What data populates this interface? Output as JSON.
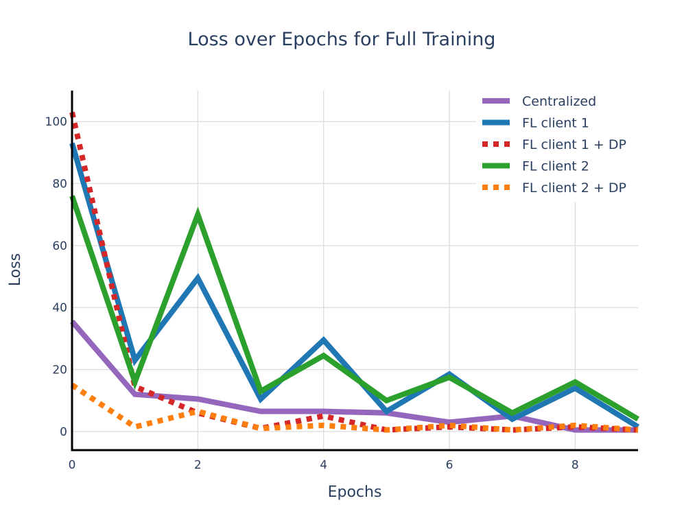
{
  "chart_data": {
    "type": "line",
    "title": "Loss over Epochs for Full Training",
    "xlabel": "Epochs",
    "ylabel": "Loss",
    "x": [
      0,
      1,
      2,
      3,
      4,
      5,
      6,
      7,
      8,
      9
    ],
    "xlim": [
      0,
      9
    ],
    "ylim": [
      -6,
      110
    ],
    "x_ticks": [
      0,
      2,
      4,
      6,
      8
    ],
    "y_ticks": [
      0,
      20,
      40,
      60,
      80,
      100
    ],
    "grid": true,
    "legend_position": "top-right",
    "series": [
      {
        "name": "Centralized",
        "color": "#9467bd",
        "dash": "solid",
        "values": [
          35.5,
          12,
          10.5,
          6.5,
          6.5,
          6,
          3,
          5,
          0.5,
          0.5
        ]
      },
      {
        "name": "FL client 1",
        "color": "#1f77b4",
        "dash": "solid",
        "values": [
          93,
          23,
          49.5,
          10.5,
          29.5,
          6.5,
          18.5,
          4,
          14,
          1.5
        ]
      },
      {
        "name": "FL client 1 + DP",
        "color": "#d62728",
        "dash": "dot",
        "values": [
          103,
          14.5,
          6,
          1,
          5,
          0.5,
          1.5,
          0.5,
          1.5,
          0.5
        ]
      },
      {
        "name": "FL client 2",
        "color": "#2ca02c",
        "dash": "solid",
        "values": [
          76,
          16,
          70,
          13,
          24.5,
          10,
          17.5,
          6,
          16,
          4
        ]
      },
      {
        "name": "FL client 2 + DP",
        "color": "#ff7f0e",
        "dash": "dot",
        "values": [
          15,
          1.5,
          6.5,
          1,
          2,
          0.5,
          2,
          0.5,
          2,
          0.5
        ]
      }
    ]
  }
}
